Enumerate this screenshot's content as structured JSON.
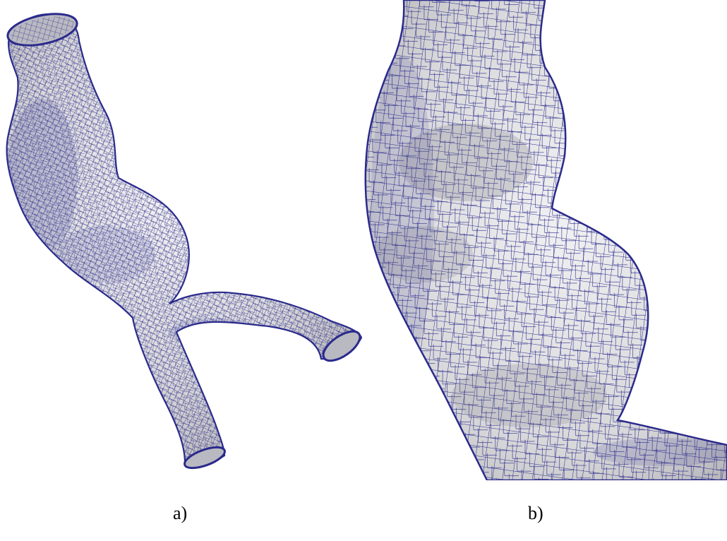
{
  "figure": {
    "panels": [
      {
        "id": "a",
        "label": "a)",
        "subject": "full-vessel-surface-mesh"
      },
      {
        "id": "b",
        "label": "b)",
        "subject": "zoomed-vessel-surface-mesh"
      }
    ]
  },
  "colors": {
    "background": "#ffffff",
    "mesh_fill": "#d8d8da",
    "mesh_fill_shadow": "#a9a9ad",
    "mesh_fill_highlight": "#f1f1f3",
    "mesh_lines": "#2a2a8c",
    "caption_text": "#000000"
  }
}
